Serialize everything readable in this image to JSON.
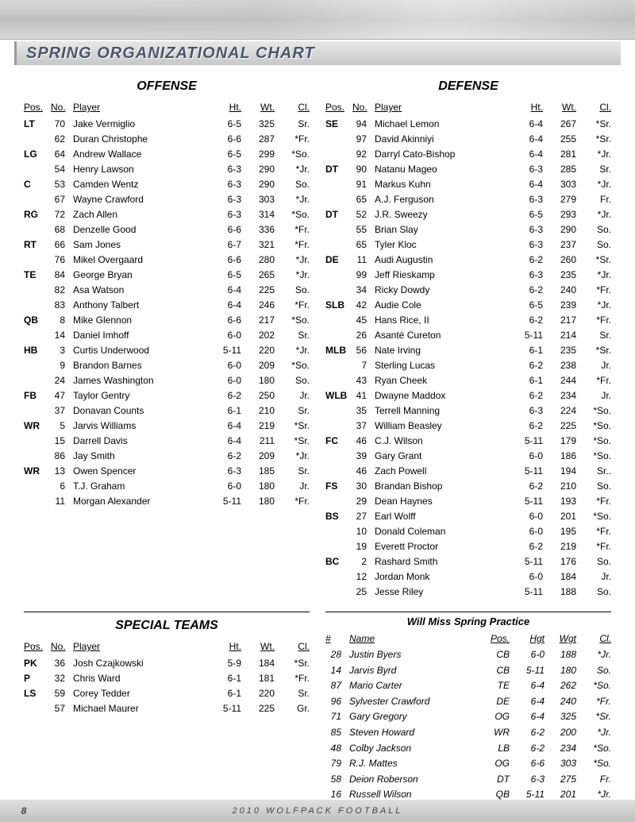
{
  "title": "SPRING ORGANIZATIONAL CHART",
  "roster_columns": [
    "Pos.",
    "No.",
    "Player",
    "Ht.",
    "Wt.",
    "Cl."
  ],
  "offense": {
    "title": "OFFENSE",
    "rows": [
      {
        "pos": "LT",
        "no": 70,
        "player": "Jake Vermiglio",
        "ht": "6-5",
        "wt": 325,
        "cl": "Sr."
      },
      {
        "pos": "",
        "no": 62,
        "player": "Duran Christophe",
        "ht": "6-6",
        "wt": 287,
        "cl": "*Fr."
      },
      {
        "pos": "LG",
        "no": 64,
        "player": "Andrew Wallace",
        "ht": "6-5",
        "wt": 299,
        "cl": "*So."
      },
      {
        "pos": "",
        "no": 54,
        "player": "Henry Lawson",
        "ht": "6-3",
        "wt": 290,
        "cl": "*Jr."
      },
      {
        "pos": "C",
        "no": 53,
        "player": "Camden Wentz",
        "ht": "6-3",
        "wt": 290,
        "cl": "So."
      },
      {
        "pos": "",
        "no": 67,
        "player": "Wayne Crawford",
        "ht": "6-3",
        "wt": 303,
        "cl": "*Jr."
      },
      {
        "pos": "RG",
        "no": 72,
        "player": "Zach Allen",
        "ht": "6-3",
        "wt": 314,
        "cl": "*So."
      },
      {
        "pos": "",
        "no": 68,
        "player": "Denzelle Good",
        "ht": "6-6",
        "wt": 336,
        "cl": "*Fr."
      },
      {
        "pos": "RT",
        "no": 66,
        "player": "Sam Jones",
        "ht": "6-7",
        "wt": 321,
        "cl": "*Fr."
      },
      {
        "pos": "",
        "no": 76,
        "player": "Mikel Overgaard",
        "ht": "6-6",
        "wt": 280,
        "cl": "*Jr."
      },
      {
        "pos": "TE",
        "no": 84,
        "player": "George Bryan",
        "ht": "6-5",
        "wt": 265,
        "cl": "*Jr."
      },
      {
        "pos": "",
        "no": 82,
        "player": "Asa Watson",
        "ht": "6-4",
        "wt": 225,
        "cl": "So."
      },
      {
        "pos": "",
        "no": 83,
        "player": "Anthony Talbert",
        "ht": "6-4",
        "wt": 246,
        "cl": "*Fr."
      },
      {
        "pos": "QB",
        "no": 8,
        "player": "Mike Glennon",
        "ht": "6-6",
        "wt": 217,
        "cl": "*So."
      },
      {
        "pos": "",
        "no": 14,
        "player": "Daniel Imhoff",
        "ht": "6-0",
        "wt": 202,
        "cl": "Sr."
      },
      {
        "pos": "HB",
        "no": 3,
        "player": "Curtis Underwood",
        "ht": "5-11",
        "wt": 220,
        "cl": "*Jr."
      },
      {
        "pos": "",
        "no": 9,
        "player": "Brandon Barnes",
        "ht": "6-0",
        "wt": 209,
        "cl": "*So."
      },
      {
        "pos": "",
        "no": 24,
        "player": "James Washington",
        "ht": "6-0",
        "wt": 180,
        "cl": "So."
      },
      {
        "pos": "FB",
        "no": 47,
        "player": "Taylor Gentry",
        "ht": "6-2",
        "wt": 250,
        "cl": "Jr."
      },
      {
        "pos": "",
        "no": 37,
        "player": "Donavan Counts",
        "ht": "6-1",
        "wt": 210,
        "cl": "Sr."
      },
      {
        "pos": "WR",
        "no": 5,
        "player": "Jarvis Williams",
        "ht": "6-4",
        "wt": 219,
        "cl": "*Sr."
      },
      {
        "pos": "",
        "no": 15,
        "player": "Darrell Davis",
        "ht": "6-4",
        "wt": 211,
        "cl": "*Sr."
      },
      {
        "pos": "",
        "no": 86,
        "player": "Jay Smith",
        "ht": "6-2",
        "wt": 209,
        "cl": "*Jr."
      },
      {
        "pos": "WR",
        "no": 13,
        "player": "Owen Spencer",
        "ht": "6-3",
        "wt": 185,
        "cl": "Sr."
      },
      {
        "pos": "",
        "no": 6,
        "player": "T.J. Graham",
        "ht": "6-0",
        "wt": 180,
        "cl": "Jr."
      },
      {
        "pos": "",
        "no": 11,
        "player": "Morgan Alexander",
        "ht": "5-11",
        "wt": 180,
        "cl": "*Fr."
      }
    ]
  },
  "defense": {
    "title": "DEFENSE",
    "rows": [
      {
        "pos": "SE",
        "no": 94,
        "player": "Michael Lemon",
        "ht": "6-4",
        "wt": 267,
        "cl": "*Sr."
      },
      {
        "pos": "",
        "no": 97,
        "player": "David Akinniyi",
        "ht": "6-4",
        "wt": 255,
        "cl": "*Sr."
      },
      {
        "pos": "",
        "no": 92,
        "player": "Darryl Cato-Bishop",
        "ht": "6-4",
        "wt": 281,
        "cl": "*Jr."
      },
      {
        "pos": "DT",
        "no": 90,
        "player": "Natanu Mageo",
        "ht": "6-3",
        "wt": 285,
        "cl": "Sr."
      },
      {
        "pos": "",
        "no": 91,
        "player": "Markus Kuhn",
        "ht": "6-4",
        "wt": 303,
        "cl": "*Jr."
      },
      {
        "pos": "",
        "no": 65,
        "player": "A.J. Ferguson",
        "ht": "6-3",
        "wt": 279,
        "cl": "Fr."
      },
      {
        "pos": "DT",
        "no": 52,
        "player": "J.R. Sweezy",
        "ht": "6-5",
        "wt": 293,
        "cl": "*Jr."
      },
      {
        "pos": "",
        "no": 55,
        "player": "Brian Slay",
        "ht": "6-3",
        "wt": 290,
        "cl": "So."
      },
      {
        "pos": "",
        "no": 65,
        "player": "Tyler Kloc",
        "ht": "6-3",
        "wt": 237,
        "cl": "So."
      },
      {
        "pos": "DE",
        "no": 11,
        "player": "Audi Augustin",
        "ht": "6-2",
        "wt": 260,
        "cl": "*Sr."
      },
      {
        "pos": "",
        "no": 99,
        "player": "Jeff Rieskamp",
        "ht": "6-3",
        "wt": 235,
        "cl": "*Jr."
      },
      {
        "pos": "",
        "no": 34,
        "player": "Ricky Dowdy",
        "ht": "6-2",
        "wt": 240,
        "cl": "*Fr."
      },
      {
        "pos": "SLB",
        "no": 42,
        "player": "Audie Cole",
        "ht": "6-5",
        "wt": 239,
        "cl": "*Jr."
      },
      {
        "pos": "",
        "no": 45,
        "player": "Hans Rice, II",
        "ht": "6-2",
        "wt": 217,
        "cl": "*Fr."
      },
      {
        "pos": "",
        "no": 26,
        "player": "Asanté Cureton",
        "ht": "5-11",
        "wt": 214,
        "cl": "Sr."
      },
      {
        "pos": "MLB",
        "no": 56,
        "player": "Nate Irving",
        "ht": "6-1",
        "wt": 235,
        "cl": "*Sr."
      },
      {
        "pos": "",
        "no": 7,
        "player": "Sterling Lucas",
        "ht": "6-2",
        "wt": 238,
        "cl": "Jr."
      },
      {
        "pos": "",
        "no": 43,
        "player": "Ryan Cheek",
        "ht": "6-1",
        "wt": 244,
        "cl": "*Fr."
      },
      {
        "pos": "WLB",
        "no": 41,
        "player": "Dwayne Maddox",
        "ht": "6-2",
        "wt": 234,
        "cl": "Jr."
      },
      {
        "pos": "",
        "no": 35,
        "player": "Terrell Manning",
        "ht": "6-3",
        "wt": 224,
        "cl": "*So."
      },
      {
        "pos": "",
        "no": 37,
        "player": "William Beasley",
        "ht": "6-2",
        "wt": 225,
        "cl": "*So."
      },
      {
        "pos": "FC",
        "no": 46,
        "player": "C.J. Wilson",
        "ht": "5-11",
        "wt": 179,
        "cl": "*So."
      },
      {
        "pos": "",
        "no": 39,
        "player": "Gary Grant",
        "ht": "6-0",
        "wt": 186,
        "cl": "*So."
      },
      {
        "pos": "",
        "no": 46,
        "player": "Zach Powell",
        "ht": "5-11",
        "wt": 194,
        "cl": "Sr.."
      },
      {
        "pos": "FS",
        "no": 30,
        "player": "Brandan Bishop",
        "ht": "6-2",
        "wt": 210,
        "cl": "So."
      },
      {
        "pos": "",
        "no": 29,
        "player": "Dean Haynes",
        "ht": "5-11",
        "wt": 193,
        "cl": "*Fr."
      },
      {
        "pos": "BS",
        "no": 27,
        "player": "Earl Wolff",
        "ht": "6-0",
        "wt": 201,
        "cl": "*So."
      },
      {
        "pos": "",
        "no": 10,
        "player": "Donald Coleman",
        "ht": "6-0",
        "wt": 195,
        "cl": "*Fr."
      },
      {
        "pos": "",
        "no": 19,
        "player": "Everett Proctor",
        "ht": "6-2",
        "wt": 219,
        "cl": "*Fr."
      },
      {
        "pos": "BC",
        "no": 2,
        "player": "Rashard Smith",
        "ht": "5-11",
        "wt": 176,
        "cl": "So."
      },
      {
        "pos": "",
        "no": 12,
        "player": "Jordan Monk",
        "ht": "6-0",
        "wt": 184,
        "cl": "Jr."
      },
      {
        "pos": "",
        "no": 25,
        "player": "Jesse Riley",
        "ht": "5-11",
        "wt": 188,
        "cl": "So."
      }
    ]
  },
  "special": {
    "title": "SPECIAL TEAMS",
    "rows": [
      {
        "pos": "PK",
        "no": 36,
        "player": "Josh Czajkowski",
        "ht": "5-9",
        "wt": 184,
        "cl": "*Sr."
      },
      {
        "pos": "P",
        "no": 32,
        "player": "Chris Ward",
        "ht": "6-1",
        "wt": 181,
        "cl": "*Fr."
      },
      {
        "pos": "LS",
        "no": 59,
        "player": "Corey Tedder",
        "ht": "6-1",
        "wt": 220,
        "cl": "Sr."
      },
      {
        "pos": "",
        "no": 57,
        "player": "Michael Maurer",
        "ht": "5-11",
        "wt": 225,
        "cl": "Gr."
      }
    ]
  },
  "miss": {
    "title": "Will Miss Spring Practice",
    "columns": [
      "#",
      "Name",
      "Pos.",
      "Hgt",
      "Wgt",
      "Cl."
    ],
    "rows": [
      {
        "no": 28,
        "name": "Justin Byers",
        "pos": "CB",
        "ht": "6-0",
        "wt": 188,
        "cl": "*Jr."
      },
      {
        "no": 14,
        "name": "Jarvis Byrd",
        "pos": "CB",
        "ht": "5-11",
        "wt": 180,
        "cl": "So."
      },
      {
        "no": 87,
        "name": "Mario Carter",
        "pos": "TE",
        "ht": "6-4",
        "wt": 262,
        "cl": "*So."
      },
      {
        "no": 96,
        "name": "Sylvester Crawford",
        "pos": "DE",
        "ht": "6-4",
        "wt": 240,
        "cl": "*Fr."
      },
      {
        "no": 71,
        "name": "Gary Gregory",
        "pos": "OG",
        "ht": "6-4",
        "wt": 325,
        "cl": "*Sr."
      },
      {
        "no": 85,
        "name": "Steven Howard",
        "pos": "WR",
        "ht": "6-2",
        "wt": 200,
        "cl": "*Jr."
      },
      {
        "no": 48,
        "name": "Colby Jackson",
        "pos": "LB",
        "ht": "6-2",
        "wt": 234,
        "cl": "*So."
      },
      {
        "no": 79,
        "name": "R.J. Mattes",
        "pos": "OG",
        "ht": "6-6",
        "wt": 303,
        "cl": "*So."
      },
      {
        "no": 58,
        "name": "Deion Roberson",
        "pos": "DT",
        "ht": "6-3",
        "wt": 275,
        "cl": "Fr."
      },
      {
        "no": 16,
        "name": "Russell Wilson",
        "pos": "QB",
        "ht": "5-11",
        "wt": 201,
        "cl": "*Jr."
      }
    ]
  },
  "footer": {
    "page": "8",
    "text": "2010 WOLFPACK FOOTBALL"
  },
  "colors": {
    "text": "#000000",
    "band_gradient": [
      "#e8e8e8",
      "#c0c0c0"
    ],
    "footer_gradient": [
      "#e0e0e0",
      "#c0c0c0"
    ]
  }
}
